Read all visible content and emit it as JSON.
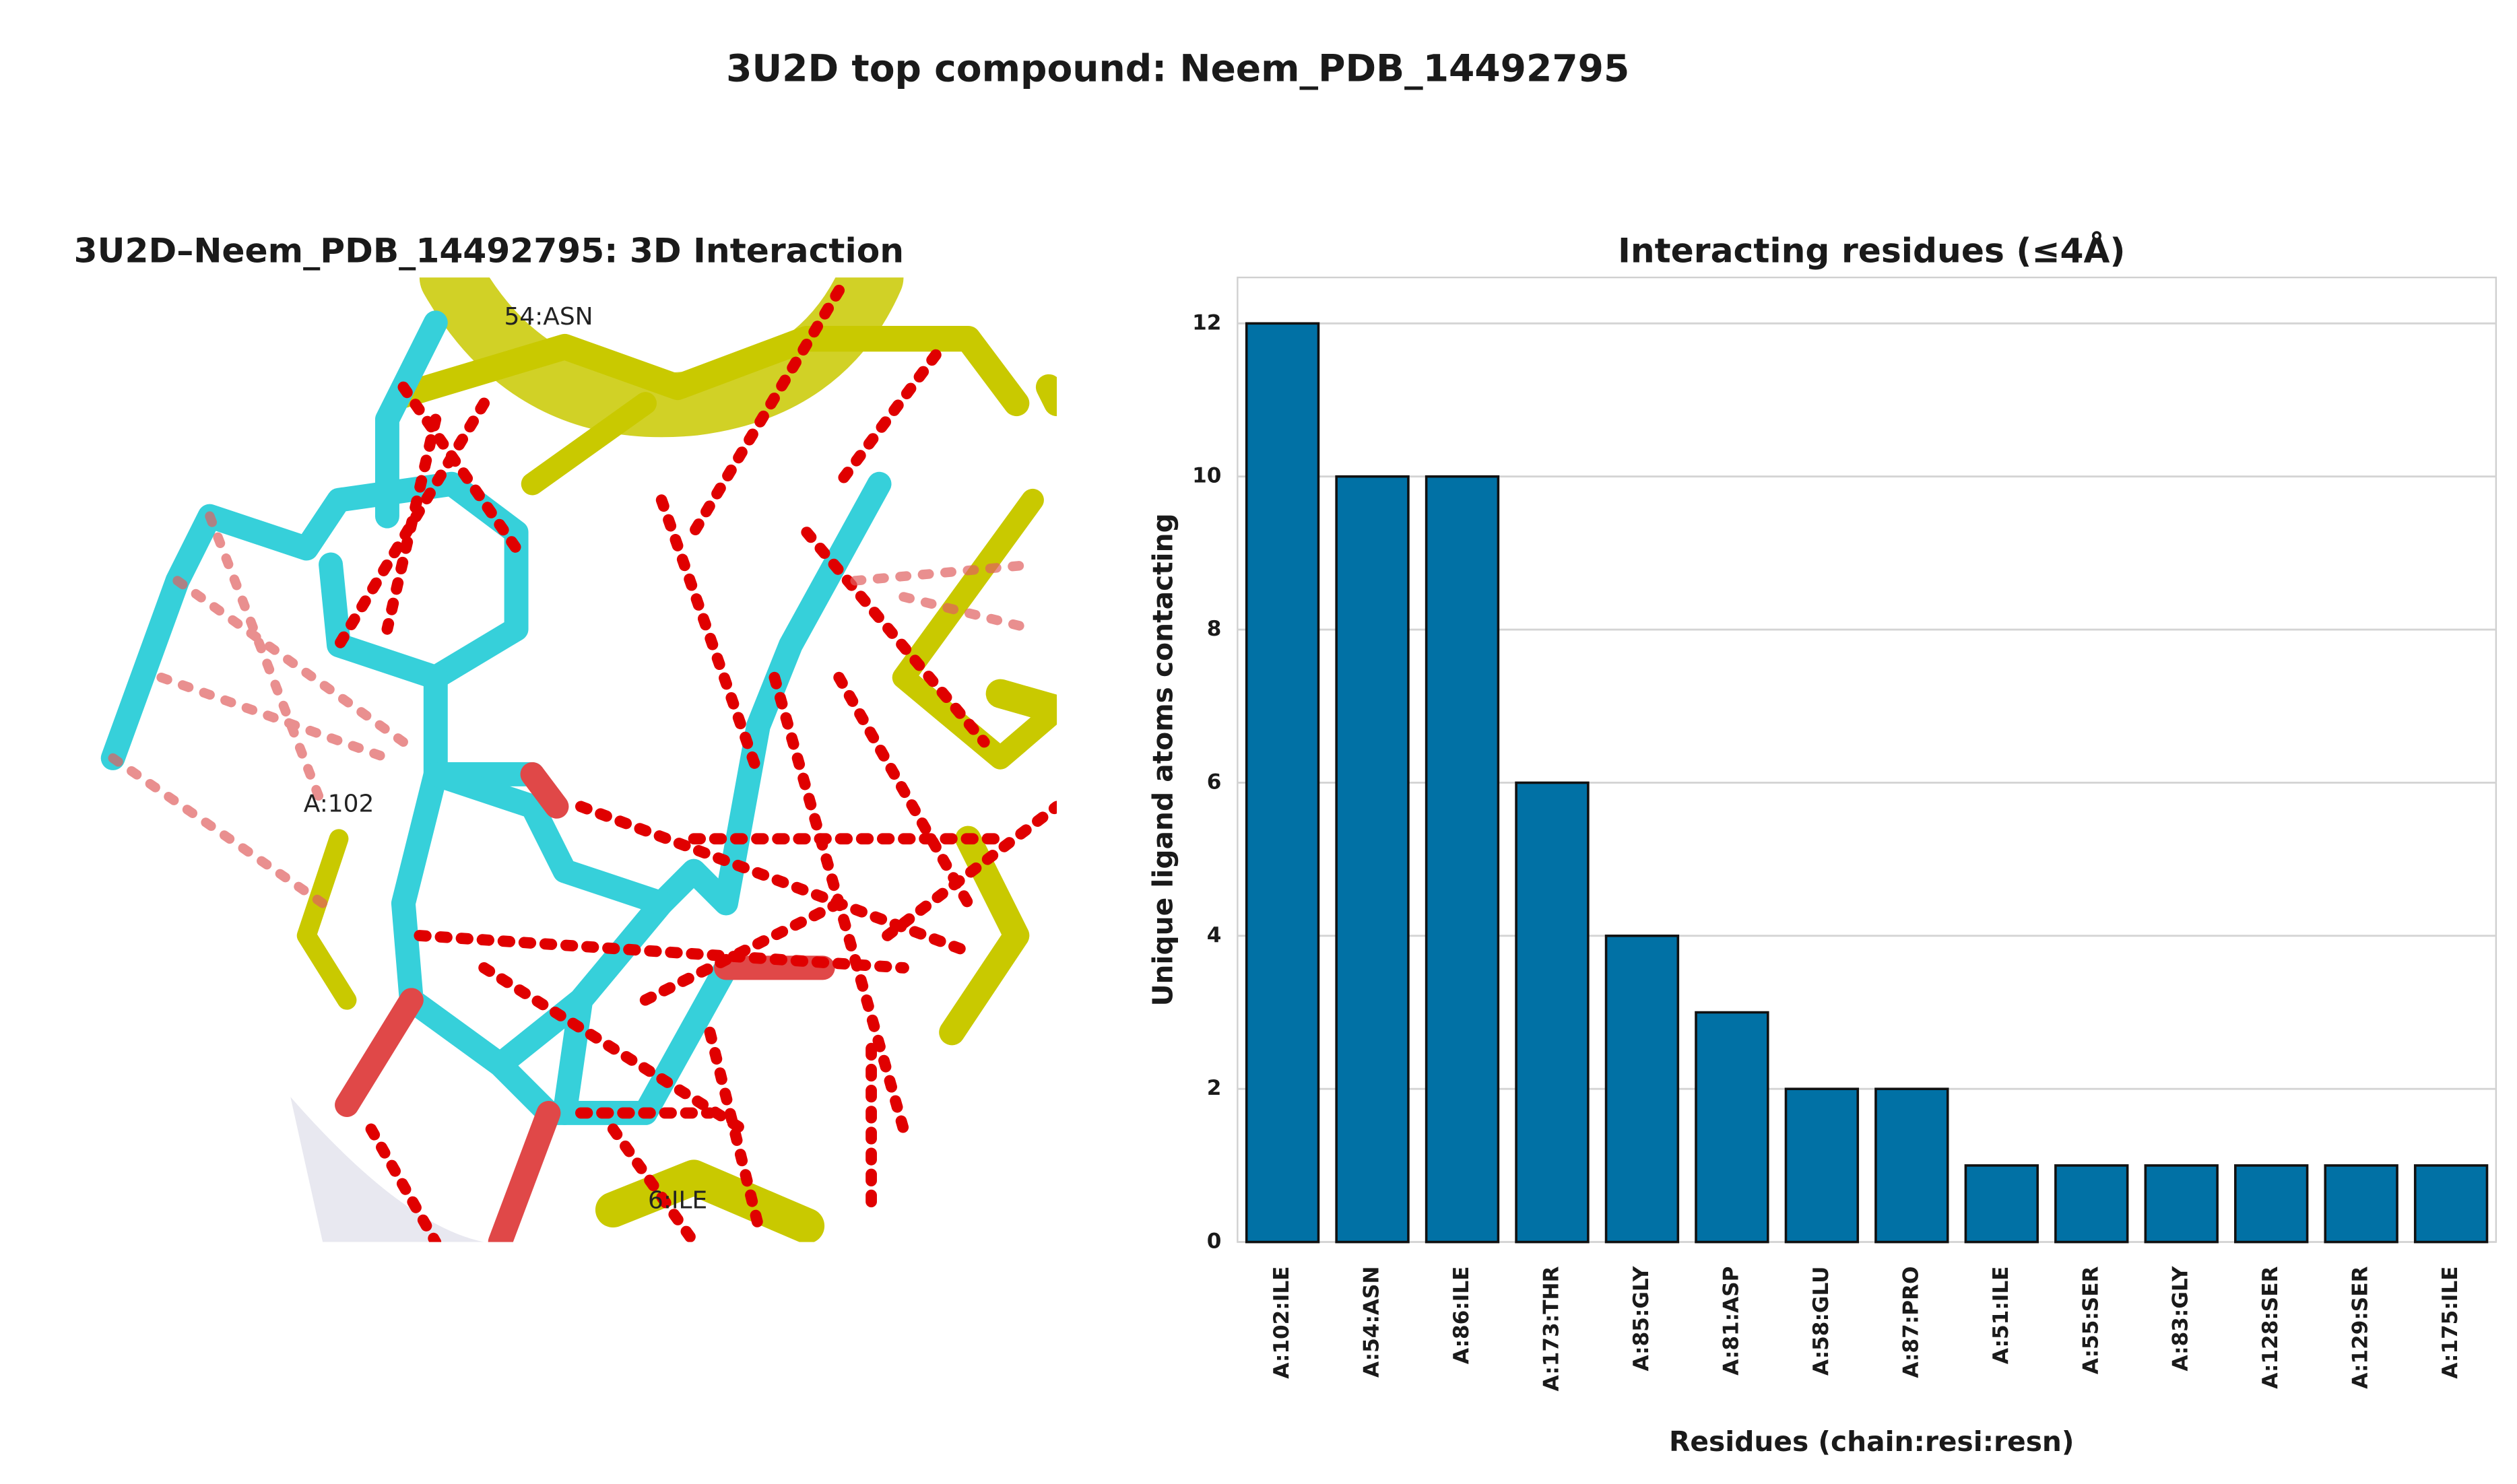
{
  "title": "3U2D top compound: Neem_PDB_14492795",
  "panel_3d": {
    "title": "3U2D–Neem_PDB_14492795: 3D Interaction",
    "labels": [
      "54:ASN",
      "A:102",
      "6:ILE"
    ]
  },
  "chart_data": {
    "type": "bar",
    "title": "Interacting residues (≤4Å)",
    "xlabel": "Residues (chain:resi:resn)",
    "ylabel": "Unique ligand atoms contacting",
    "categories": [
      "A:102:ILE",
      "A:54:ASN",
      "A:86:ILE",
      "A:173:THR",
      "A:85:GLY",
      "A:81:ASP",
      "A:58:GLU",
      "A:87:PRO",
      "A:51:ILE",
      "A:55:SER",
      "A:83:GLY",
      "A:128:SER",
      "A:129:SER",
      "A:175:ILE"
    ],
    "values": [
      12,
      10,
      10,
      6,
      4,
      3,
      2,
      2,
      1,
      1,
      1,
      1,
      1,
      1
    ],
    "color": "#0171a5",
    "ylim": [
      0,
      12.6
    ],
    "yticks": [
      0,
      2,
      4,
      6,
      8,
      10,
      12
    ],
    "grid": true
  }
}
